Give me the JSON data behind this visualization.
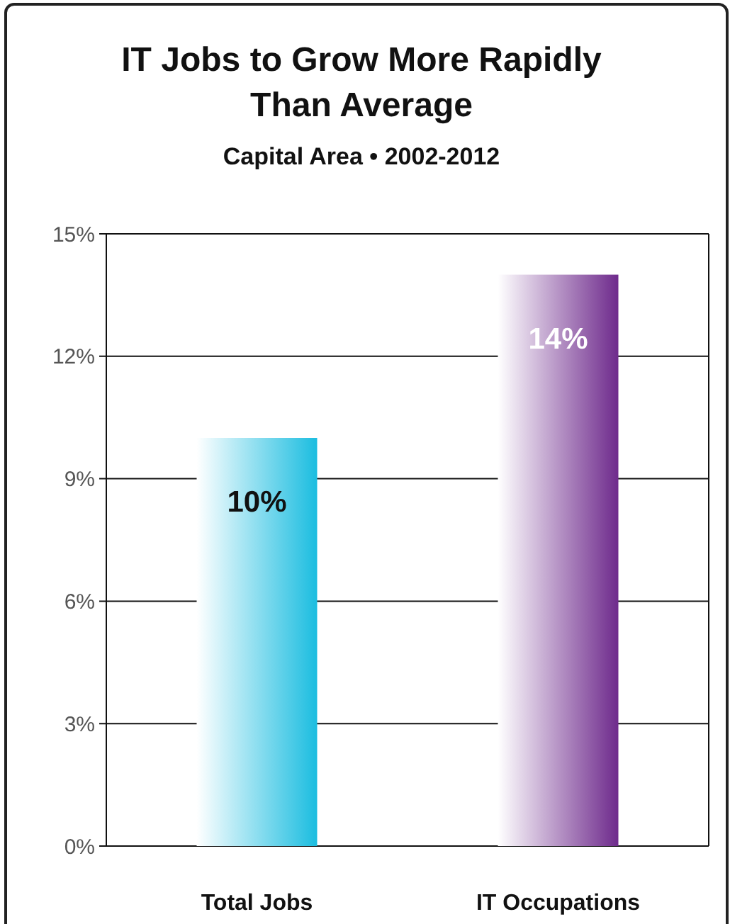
{
  "chart_data": {
    "type": "bar",
    "title": "IT Jobs to Grow More Rapidly Than Average",
    "subtitle": "Capital Area • 2002-2012",
    "categories": [
      "Total Jobs",
      "IT Occupations"
    ],
    "values": [
      10,
      14
    ],
    "colors": [
      "#1bbde0",
      "#6e2a8c"
    ],
    "value_labels": [
      "10%",
      "14%"
    ],
    "ylim": [
      0,
      15
    ],
    "yticks": [
      {
        "value": 0,
        "label": "0%"
      },
      {
        "value": 3,
        "label": "3%"
      },
      {
        "value": 6,
        "label": "6%"
      },
      {
        "value": 9,
        "label": "9%"
      },
      {
        "value": 12,
        "label": "12%"
      },
      {
        "value": 15,
        "label": "15%"
      }
    ],
    "grid": "y"
  }
}
